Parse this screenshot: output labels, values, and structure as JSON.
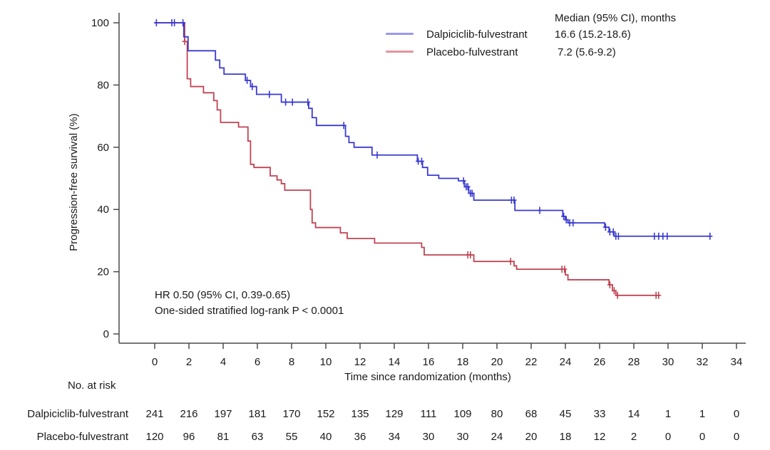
{
  "figure": {
    "ylabel": "Progression-free survival (%)",
    "xlabel": "Time since randomization (months)",
    "annotation_line1": "HR 0.50 (95% CI, 0.39-0.65)",
    "annotation_line2": "One-sided stratified log-rank P < 0.0001"
  },
  "legend": {
    "header": "Median (95% CI), months",
    "entries": [
      {
        "label": "Dalpiciclib-fulvestrant",
        "median": "16.6 (15.2-18.6)",
        "key_color": "#9a9aee"
      },
      {
        "label": "Placebo-fulvestrant",
        "median": "7.2 (5.6-9.2)",
        "key_color": "#e2959d"
      }
    ]
  },
  "chart_data": {
    "type": "line",
    "subtype": "kaplan-meier-step",
    "title": "",
    "xlabel": "Time since randomization (months)",
    "ylabel": "Progression-free survival (%)",
    "xlim": [
      0,
      34
    ],
    "ylim": [
      0,
      100
    ],
    "x_ticks": [
      0,
      2,
      4,
      6,
      8,
      10,
      12,
      14,
      16,
      18,
      20,
      22,
      24,
      26,
      28,
      30,
      32,
      34
    ],
    "y_ticks": [
      0,
      20,
      40,
      60,
      80,
      100
    ],
    "grid": false,
    "legend_position": "top-center",
    "axis_color": "#4a4a4a",
    "series": [
      {
        "name": "Dalpiciclib-fulvestrant",
        "color": "#3a3ad0",
        "median_months": 16.6,
        "median_ci": [
          15.2,
          18.6
        ],
        "steps": [
          [
            0,
            100
          ],
          [
            1.7,
            95.5
          ],
          [
            1.95,
            91
          ],
          [
            3.55,
            88
          ],
          [
            3.8,
            85.5
          ],
          [
            4.05,
            83.5
          ],
          [
            5.3,
            81.5
          ],
          [
            5.6,
            79.5
          ],
          [
            5.95,
            77
          ],
          [
            7.4,
            74.5
          ],
          [
            9.0,
            72.5
          ],
          [
            9.2,
            69.5
          ],
          [
            9.45,
            67
          ],
          [
            11.15,
            63.5
          ],
          [
            11.35,
            61.5
          ],
          [
            11.65,
            60
          ],
          [
            12.7,
            57.5
          ],
          [
            15.35,
            55.5
          ],
          [
            15.65,
            53.5
          ],
          [
            15.95,
            51
          ],
          [
            16.6,
            50
          ],
          [
            17.75,
            49.2
          ],
          [
            18.1,
            47.3
          ],
          [
            18.35,
            45.2
          ],
          [
            18.65,
            43
          ],
          [
            21.05,
            39.7
          ],
          [
            23.85,
            37.8
          ],
          [
            24.0,
            36.7
          ],
          [
            24.15,
            35.7
          ],
          [
            26.3,
            34.3
          ],
          [
            26.55,
            32.8
          ],
          [
            26.85,
            31.4
          ]
        ],
        "end_time": 32.5,
        "censors": [
          0.1,
          1.0,
          1.15,
          1.65,
          5.4,
          5.7,
          6.7,
          7.65,
          8.05,
          8.95,
          11.05,
          13.0,
          15.4,
          15.6,
          18.05,
          18.2,
          18.3,
          18.45,
          18.55,
          20.85,
          21.0,
          22.5,
          23.9,
          24.05,
          24.25,
          24.45,
          26.35,
          26.6,
          26.8,
          26.95,
          27.1,
          29.2,
          29.45,
          29.7,
          29.95,
          32.45
        ]
      },
      {
        "name": "Placebo-fulvestrant",
        "color": "#c04453",
        "median_months": 7.2,
        "median_ci": [
          5.6,
          9.2
        ],
        "steps": [
          [
            0,
            100
          ],
          [
            1.75,
            94
          ],
          [
            1.9,
            82
          ],
          [
            2.1,
            79.5
          ],
          [
            2.85,
            77.5
          ],
          [
            3.45,
            75
          ],
          [
            3.65,
            72
          ],
          [
            3.85,
            68
          ],
          [
            4.9,
            66.5
          ],
          [
            5.45,
            62
          ],
          [
            5.6,
            54.5
          ],
          [
            5.8,
            53.5
          ],
          [
            6.75,
            50.8
          ],
          [
            7.15,
            49.5
          ],
          [
            7.4,
            48.3
          ],
          [
            7.6,
            46.2
          ],
          [
            9.1,
            40
          ],
          [
            9.2,
            35.7
          ],
          [
            9.4,
            34.2
          ],
          [
            10.85,
            32.5
          ],
          [
            11.25,
            30.7
          ],
          [
            12.85,
            29.2
          ],
          [
            15.6,
            27.8
          ],
          [
            15.75,
            25.4
          ],
          [
            18.65,
            23.3
          ],
          [
            21.0,
            21.9
          ],
          [
            21.15,
            20.8
          ],
          [
            24.0,
            19.0
          ],
          [
            24.15,
            17.4
          ],
          [
            26.55,
            15.8
          ],
          [
            26.75,
            13.9
          ],
          [
            26.95,
            12.4
          ]
        ],
        "end_time": 29.45,
        "censors": [
          1.75,
          18.3,
          18.45,
          20.8,
          23.8,
          23.95,
          26.6,
          26.85,
          27.05,
          29.3,
          29.45
        ]
      }
    ],
    "hr_annotation": "HR 0.50 (95% CI, 0.39-0.65)",
    "pvalue_annotation": "One-sided stratified log-rank P < 0.0001"
  },
  "risk_table": {
    "title": "No. at risk",
    "times": [
      0,
      2,
      4,
      6,
      8,
      10,
      12,
      14,
      16,
      18,
      20,
      22,
      24,
      26,
      28,
      30,
      32,
      34
    ],
    "rows": [
      {
        "label": "Dalpiciclib-fulvestrant",
        "counts": [
          241,
          216,
          197,
          181,
          170,
          152,
          135,
          129,
          111,
          109,
          80,
          68,
          45,
          33,
          14,
          1,
          1,
          0
        ]
      },
      {
        "label": "Placebo-fulvestrant",
        "counts": [
          120,
          96,
          81,
          63,
          55,
          40,
          36,
          34,
          30,
          30,
          24,
          20,
          18,
          12,
          2,
          0,
          0,
          0
        ]
      }
    ]
  }
}
